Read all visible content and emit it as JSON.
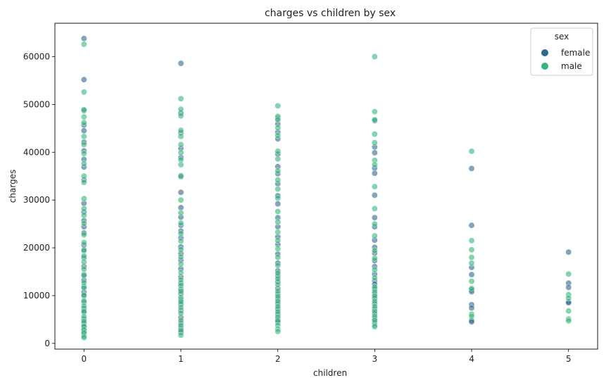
{
  "chart_data": {
    "type": "scatter",
    "title": "charges vs children by sex",
    "xlabel": "children",
    "ylabel": "charges",
    "xlim": [
      -0.3,
      5.3
    ],
    "ylim": [
      -1200,
      67000
    ],
    "x_ticks": [
      0,
      1,
      2,
      3,
      4,
      5
    ],
    "y_ticks": [
      0,
      10000,
      20000,
      30000,
      40000,
      50000,
      60000
    ],
    "grid": false,
    "legend": {
      "title": "sex",
      "position": "top-right"
    },
    "series": [
      {
        "name": "female",
        "color": "#30678d",
        "points": [
          [
            0,
            63800
          ],
          [
            0,
            55200
          ],
          [
            0,
            48700
          ],
          [
            0,
            45700
          ],
          [
            0,
            44500
          ],
          [
            0,
            42100
          ],
          [
            0,
            40300
          ],
          [
            0,
            38500
          ],
          [
            0,
            36900
          ],
          [
            0,
            34200
          ],
          [
            0,
            29300
          ],
          [
            0,
            27500
          ],
          [
            0,
            25700
          ],
          [
            0,
            24400
          ],
          [
            0,
            23100
          ],
          [
            0,
            20600
          ],
          [
            0,
            19600
          ],
          [
            0,
            17900
          ],
          [
            0,
            16100
          ],
          [
            0,
            14400
          ],
          [
            0,
            13200
          ],
          [
            0,
            11900
          ],
          [
            0,
            10700
          ],
          [
            0,
            9900
          ],
          [
            0,
            8600
          ],
          [
            0,
            7300
          ],
          [
            0,
            6500
          ],
          [
            0,
            5100
          ],
          [
            0,
            4200
          ],
          [
            0,
            3400
          ],
          [
            0,
            2600
          ],
          [
            0,
            1900
          ],
          [
            1,
            58600
          ],
          [
            1,
            48200
          ],
          [
            1,
            44100
          ],
          [
            1,
            40800
          ],
          [
            1,
            38900
          ],
          [
            1,
            35100
          ],
          [
            1,
            31600
          ],
          [
            1,
            28400
          ],
          [
            1,
            26400
          ],
          [
            1,
            24700
          ],
          [
            1,
            23500
          ],
          [
            1,
            22100
          ],
          [
            1,
            20200
          ],
          [
            1,
            18800
          ],
          [
            1,
            17400
          ],
          [
            1,
            15600
          ],
          [
            1,
            13900
          ],
          [
            1,
            12600
          ],
          [
            1,
            11300
          ],
          [
            1,
            10400
          ],
          [
            1,
            9100
          ],
          [
            1,
            8200
          ],
          [
            1,
            6900
          ],
          [
            1,
            5400
          ],
          [
            1,
            4200
          ],
          [
            1,
            3100
          ],
          [
            1,
            2300
          ],
          [
            2,
            47100
          ],
          [
            2,
            45900
          ],
          [
            2,
            44200
          ],
          [
            2,
            42800
          ],
          [
            2,
            39600
          ],
          [
            2,
            37000
          ],
          [
            2,
            35500
          ],
          [
            2,
            33400
          ],
          [
            2,
            30900
          ],
          [
            2,
            29200
          ],
          [
            2,
            26300
          ],
          [
            2,
            24400
          ],
          [
            2,
            22300
          ],
          [
            2,
            20700
          ],
          [
            2,
            18700
          ],
          [
            2,
            16800
          ],
          [
            2,
            15200
          ],
          [
            2,
            14100
          ],
          [
            2,
            12900
          ],
          [
            2,
            11500
          ],
          [
            2,
            10300
          ],
          [
            2,
            9300
          ],
          [
            2,
            8300
          ],
          [
            2,
            7200
          ],
          [
            2,
            6100
          ],
          [
            2,
            5000
          ],
          [
            2,
            4400
          ],
          [
            3,
            46600
          ],
          [
            3,
            41100
          ],
          [
            3,
            39900
          ],
          [
            3,
            36700
          ],
          [
            3,
            35600
          ],
          [
            3,
            31000
          ],
          [
            3,
            26300
          ],
          [
            3,
            24400
          ],
          [
            3,
            21600
          ],
          [
            3,
            20100
          ],
          [
            3,
            18900
          ],
          [
            3,
            17300
          ],
          [
            3,
            16100
          ],
          [
            3,
            14500
          ],
          [
            3,
            13100
          ],
          [
            3,
            12400
          ],
          [
            3,
            11400
          ],
          [
            3,
            10300
          ],
          [
            3,
            9400
          ],
          [
            3,
            8300
          ],
          [
            3,
            7200
          ],
          [
            3,
            6200
          ],
          [
            3,
            5200
          ],
          [
            3,
            4300
          ],
          [
            4,
            36600
          ],
          [
            4,
            24700
          ],
          [
            4,
            15900
          ],
          [
            4,
            14400
          ],
          [
            4,
            11200
          ],
          [
            4,
            10800
          ],
          [
            4,
            8100
          ],
          [
            4,
            7400
          ],
          [
            4,
            4800
          ],
          [
            4,
            4500
          ],
          [
            5,
            19100
          ],
          [
            5,
            12600
          ],
          [
            5,
            11700
          ],
          [
            5,
            8700
          ],
          [
            5,
            8500
          ]
        ]
      },
      {
        "name": "male",
        "color": "#35b779",
        "points": [
          [
            0,
            62600
          ],
          [
            0,
            52600
          ],
          [
            0,
            48900
          ],
          [
            0,
            47400
          ],
          [
            0,
            46200
          ],
          [
            0,
            43300
          ],
          [
            0,
            41600
          ],
          [
            0,
            39700
          ],
          [
            0,
            37600
          ],
          [
            0,
            35000
          ],
          [
            0,
            33700
          ],
          [
            0,
            30300
          ],
          [
            0,
            28200
          ],
          [
            0,
            26800
          ],
          [
            0,
            25100
          ],
          [
            0,
            22700
          ],
          [
            0,
            21100
          ],
          [
            0,
            19400
          ],
          [
            0,
            18300
          ],
          [
            0,
            17000
          ],
          [
            0,
            15500
          ],
          [
            0,
            14200
          ],
          [
            0,
            12700
          ],
          [
            0,
            11600
          ],
          [
            0,
            10100
          ],
          [
            0,
            8900
          ],
          [
            0,
            7800
          ],
          [
            0,
            6700
          ],
          [
            0,
            5600
          ],
          [
            0,
            4600
          ],
          [
            0,
            3600
          ],
          [
            0,
            2900
          ],
          [
            0,
            2200
          ],
          [
            0,
            1500
          ],
          [
            0,
            1200
          ],
          [
            1,
            51200
          ],
          [
            1,
            49000
          ],
          [
            1,
            47600
          ],
          [
            1,
            44600
          ],
          [
            1,
            43300
          ],
          [
            1,
            41600
          ],
          [
            1,
            39900
          ],
          [
            1,
            38400
          ],
          [
            1,
            37400
          ],
          [
            1,
            34900
          ],
          [
            1,
            30000
          ],
          [
            1,
            27300
          ],
          [
            1,
            25200
          ],
          [
            1,
            23000
          ],
          [
            1,
            21400
          ],
          [
            1,
            19600
          ],
          [
            1,
            18100
          ],
          [
            1,
            16600
          ],
          [
            1,
            14800
          ],
          [
            1,
            13300
          ],
          [
            1,
            12100
          ],
          [
            1,
            10900
          ],
          [
            1,
            9600
          ],
          [
            1,
            8700
          ],
          [
            1,
            7500
          ],
          [
            1,
            6300
          ],
          [
            1,
            4800
          ],
          [
            1,
            3700
          ],
          [
            1,
            2700
          ],
          [
            1,
            1700
          ],
          [
            2,
            49700
          ],
          [
            2,
            47500
          ],
          [
            2,
            46800
          ],
          [
            2,
            45100
          ],
          [
            2,
            43500
          ],
          [
            2,
            40200
          ],
          [
            2,
            38600
          ],
          [
            2,
            36100
          ],
          [
            2,
            34200
          ],
          [
            2,
            32300
          ],
          [
            2,
            30400
          ],
          [
            2,
            27600
          ],
          [
            2,
            25400
          ],
          [
            2,
            23300
          ],
          [
            2,
            21500
          ],
          [
            2,
            19800
          ],
          [
            2,
            18000
          ],
          [
            2,
            16300
          ],
          [
            2,
            14700
          ],
          [
            2,
            13500
          ],
          [
            2,
            12300
          ],
          [
            2,
            10900
          ],
          [
            2,
            9800
          ],
          [
            2,
            8800
          ],
          [
            2,
            7700
          ],
          [
            2,
            6600
          ],
          [
            2,
            5500
          ],
          [
            2,
            4700
          ],
          [
            2,
            3800
          ],
          [
            2,
            3000
          ],
          [
            2,
            2500
          ],
          [
            3,
            60000
          ],
          [
            3,
            48500
          ],
          [
            3,
            46800
          ],
          [
            3,
            43800
          ],
          [
            3,
            42000
          ],
          [
            3,
            38300
          ],
          [
            3,
            37400
          ],
          [
            3,
            32800
          ],
          [
            3,
            28200
          ],
          [
            3,
            25000
          ],
          [
            3,
            22500
          ],
          [
            3,
            19400
          ],
          [
            3,
            17800
          ],
          [
            3,
            15400
          ],
          [
            3,
            13700
          ],
          [
            3,
            11800
          ],
          [
            3,
            10800
          ],
          [
            3,
            9900
          ],
          [
            3,
            8800
          ],
          [
            3,
            7700
          ],
          [
            3,
            6700
          ],
          [
            3,
            5700
          ],
          [
            3,
            4800
          ],
          [
            3,
            3800
          ],
          [
            3,
            3500
          ],
          [
            4,
            40200
          ],
          [
            4,
            21500
          ],
          [
            4,
            19600
          ],
          [
            4,
            18000
          ],
          [
            4,
            16800
          ],
          [
            4,
            13000
          ],
          [
            4,
            11500
          ],
          [
            4,
            6100
          ],
          [
            4,
            5700
          ],
          [
            5,
            14500
          ],
          [
            5,
            10200
          ],
          [
            5,
            9500
          ],
          [
            5,
            6800
          ],
          [
            5,
            5100
          ],
          [
            5,
            4700
          ]
        ]
      }
    ]
  }
}
